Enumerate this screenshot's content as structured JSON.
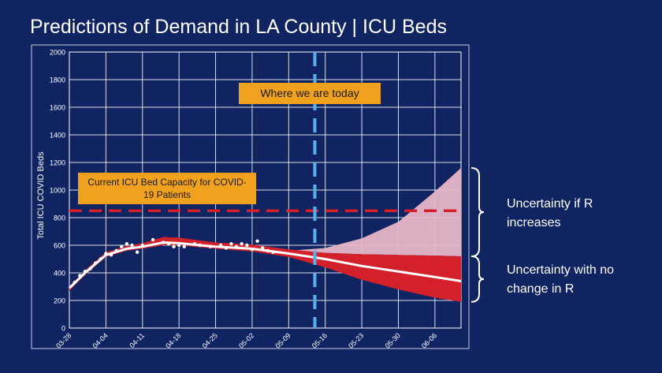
{
  "title": "Predictions of Demand in LA County | ICU Beds",
  "annotations": {
    "today": "Where we are today",
    "capacity": "Current ICU Bed Capacity for COVID-19 Patients",
    "uncertainty_increase": "Uncertainty if R increases",
    "uncertainty_nochange": "Uncertainty with no change in R"
  },
  "colors": {
    "background": "#0f2460",
    "capacity_line": "#d4202a",
    "today_line": "#5aaef0",
    "projection_band": "#d4202a",
    "increase_band": "#e8b6c8",
    "median_line": "#ffffff",
    "callout": "#f0a11e"
  },
  "chart_data": {
    "type": "line",
    "title": "",
    "xlabel": "",
    "ylabel": "Total ICU COVID Beds",
    "ylim": [
      0,
      2000
    ],
    "yticks": [
      0,
      200,
      400,
      600,
      800,
      1000,
      1200,
      1400,
      1600,
      1800,
      2000
    ],
    "xlim": [
      "2020-03-28",
      "2020-06-11"
    ],
    "xticks": [
      "03-28",
      "04-04",
      "04-11",
      "04-18",
      "04-25",
      "05-02",
      "05-09",
      "05-16",
      "05-23",
      "05-30",
      "06-06"
    ],
    "grid": true,
    "today": "2020-05-14",
    "capacity": 850,
    "observed": [
      {
        "x": "2020-03-29",
        "y": 330
      },
      {
        "x": "2020-03-30",
        "y": 380
      },
      {
        "x": "2020-03-31",
        "y": 410
      },
      {
        "x": "2020-04-01",
        "y": 430
      },
      {
        "x": "2020-04-02",
        "y": 470
      },
      {
        "x": "2020-04-03",
        "y": 500
      },
      {
        "x": "2020-04-04",
        "y": 540
      },
      {
        "x": "2020-04-05",
        "y": 530
      },
      {
        "x": "2020-04-06",
        "y": 560
      },
      {
        "x": "2020-04-07",
        "y": 590
      },
      {
        "x": "2020-04-08",
        "y": 610
      },
      {
        "x": "2020-04-09",
        "y": 600
      },
      {
        "x": "2020-04-10",
        "y": 550
      },
      {
        "x": "2020-04-11",
        "y": 600
      },
      {
        "x": "2020-04-13",
        "y": 640
      },
      {
        "x": "2020-04-15",
        "y": 620
      },
      {
        "x": "2020-04-16",
        "y": 610
      },
      {
        "x": "2020-04-17",
        "y": 590
      },
      {
        "x": "2020-04-18",
        "y": 600
      },
      {
        "x": "2020-04-19",
        "y": 590
      },
      {
        "x": "2020-04-21",
        "y": 610
      },
      {
        "x": "2020-04-22",
        "y": 600
      },
      {
        "x": "2020-04-24",
        "y": 590
      },
      {
        "x": "2020-04-26",
        "y": 600
      },
      {
        "x": "2020-04-27",
        "y": 580
      },
      {
        "x": "2020-04-28",
        "y": 610
      },
      {
        "x": "2020-04-29",
        "y": 590
      },
      {
        "x": "2020-04-30",
        "y": 610
      },
      {
        "x": "2020-05-01",
        "y": 600
      },
      {
        "x": "2020-05-02",
        "y": 570
      },
      {
        "x": "2020-05-03",
        "y": 630
      },
      {
        "x": "2020-05-04",
        "y": 580
      },
      {
        "x": "2020-05-05",
        "y": 560
      },
      {
        "x": "2020-05-06",
        "y": 550
      }
    ],
    "median": [
      {
        "x": "2020-03-28",
        "y": 290
      },
      {
        "x": "2020-03-31",
        "y": 400
      },
      {
        "x": "2020-04-04",
        "y": 530
      },
      {
        "x": "2020-04-08",
        "y": 575
      },
      {
        "x": "2020-04-11",
        "y": 590
      },
      {
        "x": "2020-04-15",
        "y": 620
      },
      {
        "x": "2020-04-18",
        "y": 615
      },
      {
        "x": "2020-04-22",
        "y": 600
      },
      {
        "x": "2020-04-25",
        "y": 590
      },
      {
        "x": "2020-05-02",
        "y": 575
      },
      {
        "x": "2020-05-09",
        "y": 540
      },
      {
        "x": "2020-05-16",
        "y": 500
      },
      {
        "x": "2020-05-23",
        "y": 450
      },
      {
        "x": "2020-05-30",
        "y": 410
      },
      {
        "x": "2020-06-06",
        "y": 370
      },
      {
        "x": "2020-06-11",
        "y": 340
      }
    ],
    "band_no_change": [
      {
        "x": "2020-03-28",
        "low": 270,
        "high": 300
      },
      {
        "x": "2020-03-31",
        "low": 385,
        "high": 420
      },
      {
        "x": "2020-04-04",
        "low": 515,
        "high": 550
      },
      {
        "x": "2020-04-08",
        "low": 560,
        "high": 595
      },
      {
        "x": "2020-04-11",
        "low": 575,
        "high": 615
      },
      {
        "x": "2020-04-15",
        "low": 600,
        "high": 660
      },
      {
        "x": "2020-04-18",
        "low": 598,
        "high": 655
      },
      {
        "x": "2020-04-22",
        "low": 585,
        "high": 635
      },
      {
        "x": "2020-04-25",
        "low": 575,
        "high": 620
      },
      {
        "x": "2020-05-02",
        "low": 555,
        "high": 605
      },
      {
        "x": "2020-05-09",
        "low": 515,
        "high": 570
      },
      {
        "x": "2020-05-16",
        "low": 440,
        "high": 545
      },
      {
        "x": "2020-05-23",
        "low": 350,
        "high": 535
      },
      {
        "x": "2020-05-30",
        "low": 280,
        "high": 530
      },
      {
        "x": "2020-06-06",
        "low": 220,
        "high": 525
      },
      {
        "x": "2020-06-11",
        "low": 190,
        "high": 520
      }
    ],
    "band_r_increase": [
      {
        "x": "2020-05-09",
        "low": 550,
        "high": 560
      },
      {
        "x": "2020-05-16",
        "low": 545,
        "high": 580
      },
      {
        "x": "2020-05-23",
        "low": 535,
        "high": 650
      },
      {
        "x": "2020-05-30",
        "low": 530,
        "high": 770
      },
      {
        "x": "2020-06-06",
        "low": 525,
        "high": 990
      },
      {
        "x": "2020-06-11",
        "low": 520,
        "high": 1160
      }
    ]
  }
}
